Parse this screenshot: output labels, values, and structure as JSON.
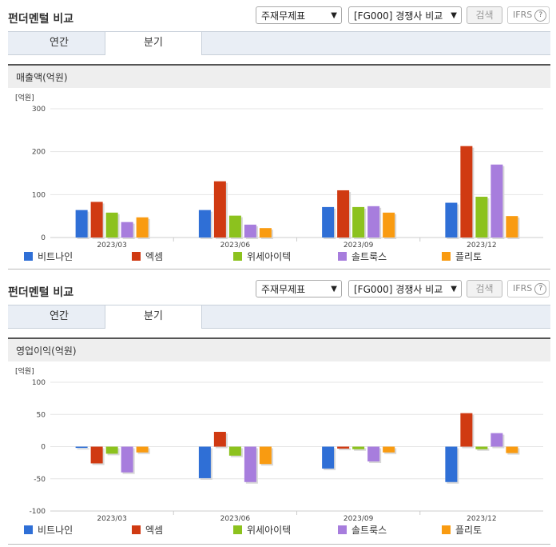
{
  "panels": [
    {
      "title": "펀더멘털 비교",
      "select1": "주재무제표",
      "select2": "[FG000] 경쟁사 비교",
      "search_label": "검색",
      "ifrs_label": "IFRS",
      "tabs": [
        "연간",
        "분기"
      ],
      "active_tab": "분기",
      "metric_label": "매출액(억원)"
    },
    {
      "title": "펀더멘털 비교",
      "select1": "주재무제표",
      "select2": "[FG000] 경쟁사 비교",
      "search_label": "검색",
      "ifrs_label": "IFRS",
      "tabs": [
        "연간",
        "분기"
      ],
      "active_tab": "분기",
      "metric_label": "영업이익(억원)"
    }
  ],
  "colors": {
    "비트나인": "#2f6fd6",
    "엑셈": "#d03a12",
    "위세아이텍": "#8cc21e",
    "솔트룩스": "#a77ddd",
    "플리토": "#f99b11"
  },
  "chart_data": [
    {
      "type": "bar",
      "unit_label": "[억원]",
      "categories": [
        "2023/03",
        "2023/06",
        "2023/09",
        "2023/12"
      ],
      "ylim": [
        0,
        300
      ],
      "yticks": [
        0,
        100,
        200,
        300
      ],
      "grid": true,
      "legend_position": "bottom",
      "series": [
        {
          "name": "비트나인",
          "values": [
            64,
            64,
            71,
            81
          ]
        },
        {
          "name": "엑셈",
          "values": [
            83,
            131,
            110,
            213
          ]
        },
        {
          "name": "위세아이텍",
          "values": [
            58,
            51,
            71,
            95
          ]
        },
        {
          "name": "솔트룩스",
          "values": [
            36,
            30,
            73,
            170
          ]
        },
        {
          "name": "플리토",
          "values": [
            47,
            22,
            58,
            50
          ]
        }
      ]
    },
    {
      "type": "bar",
      "unit_label": "[억원]",
      "categories": [
        "2023/03",
        "2023/06",
        "2023/09",
        "2023/12"
      ],
      "ylim": [
        -100,
        100
      ],
      "yticks": [
        -100,
        -50,
        0,
        50,
        100
      ],
      "grid": true,
      "legend_position": "bottom",
      "series": [
        {
          "name": "비트나인",
          "values": [
            -2,
            -49,
            -34,
            -55
          ]
        },
        {
          "name": "엑셈",
          "values": [
            -26,
            23,
            -3,
            52
          ]
        },
        {
          "name": "위세아이텍",
          "values": [
            -11,
            -14,
            -4,
            -4
          ]
        },
        {
          "name": "솔트룩스",
          "values": [
            -40,
            -55,
            -23,
            21
          ]
        },
        {
          "name": "플리토",
          "values": [
            -9,
            -27,
            -9,
            -10
          ]
        }
      ]
    }
  ]
}
